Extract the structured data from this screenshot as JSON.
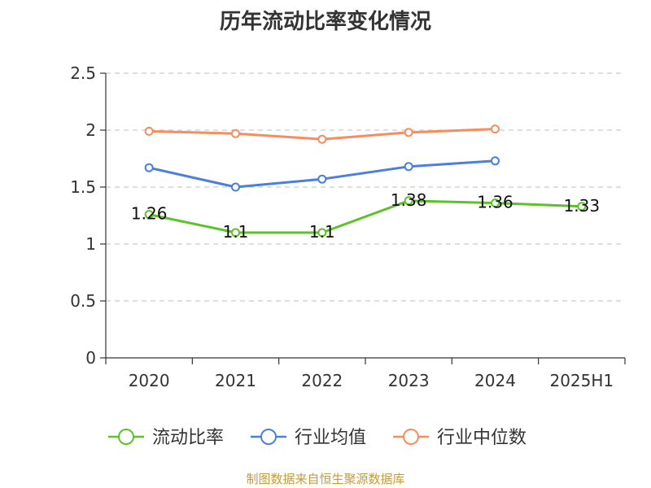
{
  "chart_data": {
    "type": "line",
    "title": "历年流动比率变化情况",
    "categories": [
      "2020",
      "2021",
      "2022",
      "2023",
      "2024",
      "2025H1"
    ],
    "ylim": [
      0,
      2.5
    ],
    "y_ticks": [
      0,
      0.5,
      1,
      1.5,
      2,
      2.5
    ],
    "y_tick_labels": [
      "0",
      "0.5",
      "1",
      "1.5",
      "2",
      "2.5"
    ],
    "grid": true,
    "legend_position": "bottom",
    "series": [
      {
        "name": "流动比率",
        "color": "#5dc12a",
        "values": [
          1.26,
          1.1,
          1.1,
          1.38,
          1.36,
          1.33
        ],
        "labels": [
          "1.26",
          "1.1",
          "1.1",
          "1.38",
          "1.36",
          "1.33"
        ]
      },
      {
        "name": "行业均值",
        "color": "#4a7fdc",
        "values": [
          1.67,
          1.5,
          1.57,
          1.68,
          1.73,
          null
        ]
      },
      {
        "name": "行业中位数",
        "color": "#f88c5c",
        "values": [
          1.99,
          1.97,
          1.92,
          1.98,
          2.01,
          null
        ]
      }
    ]
  },
  "footer": "制图数据来自恒生聚源数据库"
}
